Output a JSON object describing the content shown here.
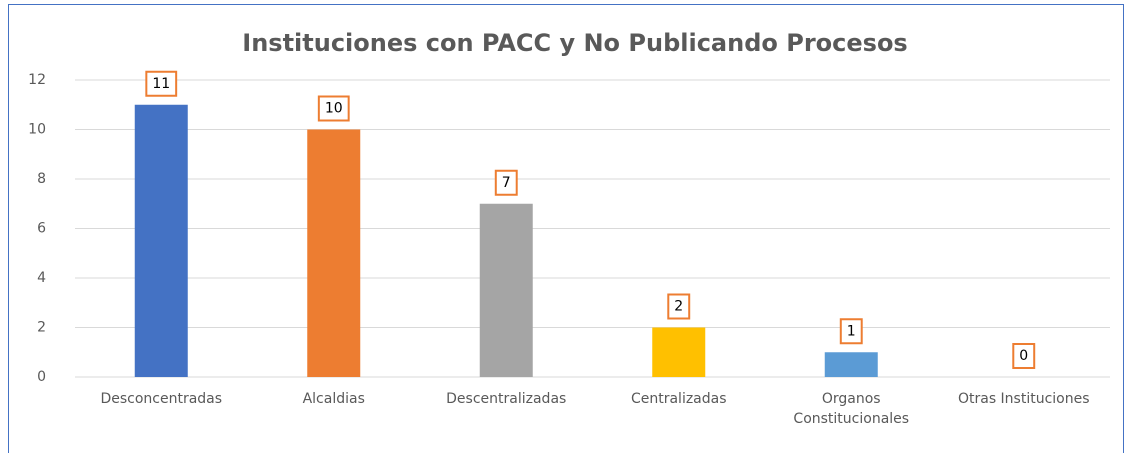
{
  "chart_data": {
    "type": "bar",
    "title": "Instituciones con PACC y No Publicando Procesos",
    "categories": [
      "Desconcentradas",
      "Alcaldias",
      "Descentralizadas",
      "Centralizadas",
      "Organos\nConstitucionales",
      "Otras Instituciones"
    ],
    "values": [
      11,
      10,
      7,
      2,
      1,
      0
    ],
    "colors": [
      "#4472c4",
      "#ed7d31",
      "#a5a5a5",
      "#ffc000",
      "#5b9bd5",
      "#70ad47"
    ],
    "ylim": [
      0,
      12
    ],
    "yticks": [
      0,
      2,
      4,
      6,
      8,
      10,
      12
    ],
    "grid": true
  }
}
